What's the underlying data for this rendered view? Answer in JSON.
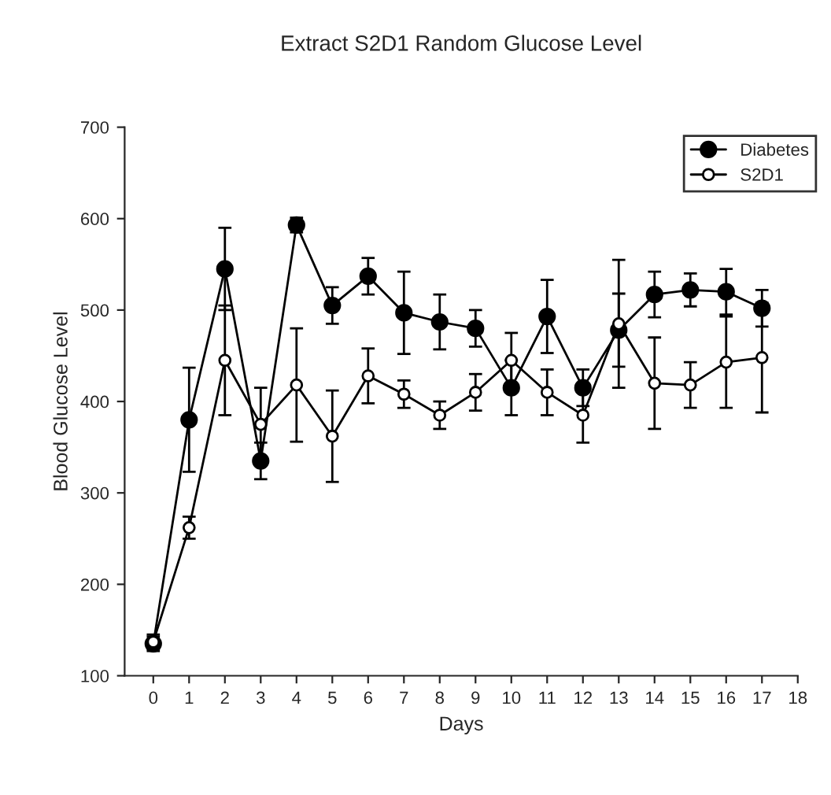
{
  "chart_data": {
    "type": "line",
    "title": "Extract S2D1 Random Glucose Level",
    "xlabel": "Days",
    "ylabel": "Blood Glucose Level",
    "x": [
      0,
      1,
      2,
      3,
      4,
      5,
      6,
      7,
      8,
      9,
      10,
      11,
      12,
      13,
      14,
      15,
      16,
      17
    ],
    "series": [
      {
        "name": "Diabetes",
        "color": "#000000",
        "marker": "circle_filled",
        "values": [
          135,
          380,
          545,
          335,
          593,
          505,
          537,
          497,
          487,
          480,
          415,
          493,
          415,
          478,
          517,
          522,
          520,
          502
        ],
        "errors": [
          8,
          57,
          45,
          20,
          8,
          20,
          20,
          45,
          30,
          20,
          30,
          40,
          20,
          40,
          25,
          18,
          25,
          20
        ]
      },
      {
        "name": "S2D1",
        "color": "#000000",
        "marker": "circle_open",
        "values": [
          137,
          262,
          445,
          375,
          418,
          362,
          428,
          408,
          385,
          410,
          445,
          410,
          385,
          485,
          420,
          418,
          443,
          448
        ],
        "errors": [
          8,
          12,
          60,
          40,
          62,
          50,
          30,
          15,
          15,
          20,
          30,
          25,
          30,
          70,
          50,
          25,
          50,
          60
        ]
      }
    ],
    "xlim": [
      -0.8,
      18
    ],
    "xticks": [
      0,
      1,
      2,
      3,
      4,
      5,
      6,
      7,
      8,
      9,
      10,
      11,
      12,
      13,
      14,
      15,
      16,
      17,
      18
    ],
    "ylim": [
      100,
      700
    ],
    "yticks": [
      100,
      200,
      300,
      400,
      500,
      600,
      700
    ],
    "grid": false,
    "legend": "top right",
    "line_style": "solid"
  }
}
